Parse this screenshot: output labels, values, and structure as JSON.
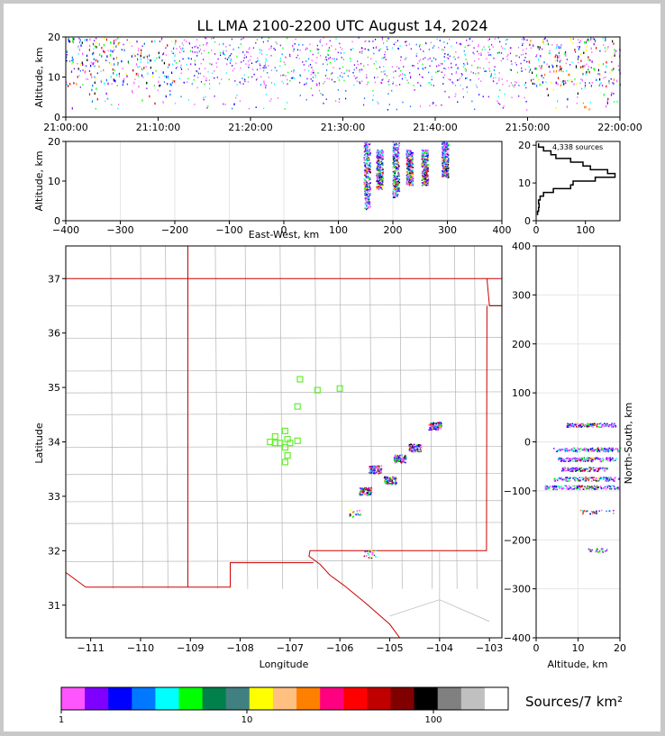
{
  "title": "LL LMA 2100-2200 UTC August 14, 2024",
  "panels": {
    "time_height": {
      "ylabel": "Altitude, km",
      "ytick_labels": [
        "0",
        "10",
        "20"
      ],
      "xtick_labels": [
        "21:00:00",
        "21:10:00",
        "21:20:00",
        "21:30:00",
        "21:40:00",
        "21:50:00",
        "22:00:00"
      ]
    },
    "ew_height": {
      "ylabel": "Altitude, km",
      "xlabel": "East-West, km",
      "ytick_labels": [
        "0",
        "10",
        "20"
      ],
      "xtick_labels": [
        "−400",
        "−300",
        "−200",
        "−100",
        "0",
        "100",
        "200",
        "300",
        "400"
      ]
    },
    "histogram": {
      "annotation": "4,338 sources",
      "ytick_labels": [
        "0",
        "10",
        "20"
      ],
      "xtick_labels": [
        "0",
        "100"
      ]
    },
    "plan_view": {
      "xlabel": "Longitude",
      "ylabel": "Latitude",
      "xtick_labels": [
        "−111",
        "−110",
        "−109",
        "−108",
        "−107",
        "−106",
        "−105",
        "−104",
        "−103"
      ],
      "ytick_labels": [
        "31",
        "32",
        "33",
        "34",
        "35",
        "36",
        "37"
      ]
    },
    "ns_height": {
      "xlabel": "Altitude, km",
      "ylabel": "North-South, km",
      "ytick_labels": [
        "−400",
        "−300",
        "−200",
        "−100",
        "0",
        "100",
        "200",
        "300",
        "400"
      ],
      "xtick_labels": [
        "0",
        "10",
        "20"
      ]
    }
  },
  "colorbar": {
    "label": "Sources/7 km²",
    "tick_labels": [
      "1",
      "10",
      "100"
    ],
    "colors": [
      "#ff55ff",
      "#8000ff",
      "#0000ff",
      "#0078ff",
      "#00ffff",
      "#00ff00",
      "#00804a",
      "#408080",
      "#ffff00",
      "#ffc080",
      "#ff8000",
      "#ff0080",
      "#ff0000",
      "#c00000",
      "#800000",
      "#000000",
      "#808080",
      "#c0c0c0",
      "#ffffff"
    ]
  },
  "colors": {
    "state_border": "#cc0000",
    "county_border": "#b4b4b4",
    "station": "#66ee33"
  },
  "chart_data": [
    {
      "type": "scatter",
      "name": "time-altitude",
      "x_range": [
        "21:00:00",
        "22:00:00"
      ],
      "ylim": [
        0,
        20
      ],
      "clusters": [
        {
          "t": "21:05",
          "alt": [
            8,
            20
          ]
        },
        {
          "t": "21:10",
          "alt": [
            8,
            20
          ]
        },
        {
          "t": "21:20",
          "alt": [
            9,
            19
          ]
        },
        {
          "t": "21:30",
          "alt": [
            8,
            20
          ]
        },
        {
          "t": "21:40",
          "alt": [
            8,
            18
          ]
        },
        {
          "t": "21:50",
          "alt": [
            8,
            20
          ]
        },
        {
          "t": "21:57",
          "alt": [
            7,
            19
          ]
        }
      ]
    },
    {
      "type": "scatter",
      "name": "east-west vs altitude",
      "xlim": [
        -400,
        400
      ],
      "ylim": [
        0,
        20
      ],
      "columns": [
        {
          "x": 152,
          "alt": [
            3,
            20
          ]
        },
        {
          "x": 175,
          "alt": [
            8,
            18
          ]
        },
        {
          "x": 205,
          "alt": [
            6,
            20
          ]
        },
        {
          "x": 230,
          "alt": [
            9,
            18
          ]
        },
        {
          "x": 258,
          "alt": [
            9,
            18
          ]
        },
        {
          "x": 295,
          "alt": [
            11,
            20
          ]
        }
      ]
    },
    {
      "type": "line",
      "name": "altitude histogram",
      "xlim": [
        0,
        170
      ],
      "ylim": [
        0,
        21
      ],
      "alt": [
        2,
        3,
        4,
        5,
        6,
        7,
        8,
        9,
        10,
        11,
        12,
        13,
        14,
        15,
        16,
        17,
        18,
        19,
        20
      ],
      "count": [
        3,
        5,
        6,
        5,
        8,
        15,
        35,
        70,
        75,
        120,
        160,
        145,
        110,
        95,
        70,
        40,
        30,
        15,
        5
      ]
    },
    {
      "type": "scatter",
      "name": "plan view",
      "xlim": [
        -111.5,
        -102.75
      ],
      "ylim": [
        30.4,
        37.6
      ],
      "source_clusters": [
        {
          "lon": -105.5,
          "lat": 33.1
        },
        {
          "lon": -105.3,
          "lat": 33.5
        },
        {
          "lon": -105.0,
          "lat": 33.3
        },
        {
          "lon": -104.8,
          "lat": 33.7
        },
        {
          "lon": -104.5,
          "lat": 33.9
        },
        {
          "lon": -104.1,
          "lat": 34.3
        },
        {
          "lon": -105.7,
          "lat": 32.7
        },
        {
          "lon": -105.4,
          "lat": 31.95
        }
      ],
      "stations": [
        [
          -106.8,
          35.15
        ],
        [
          -106.45,
          34.95
        ],
        [
          -106.0,
          34.98
        ],
        [
          -106.85,
          34.65
        ],
        [
          -107.1,
          34.2
        ],
        [
          -107.3,
          34.1
        ],
        [
          -107.05,
          34.05
        ],
        [
          -107.4,
          34.0
        ],
        [
          -107.2,
          33.98
        ],
        [
          -107.0,
          33.98
        ],
        [
          -106.85,
          34.02
        ],
        [
          -107.1,
          33.9
        ],
        [
          -107.05,
          33.75
        ],
        [
          -107.1,
          33.63
        ],
        [
          -107.3,
          33.98
        ]
      ]
    },
    {
      "type": "scatter",
      "name": "altitude vs north-south",
      "xlim": [
        0,
        20
      ],
      "ylim": [
        -400,
        400
      ],
      "rows": [
        {
          "ns": 35,
          "alt": [
            7,
            19
          ]
        },
        {
          "ns": -15,
          "alt": [
            4,
            20
          ]
        },
        {
          "ns": -35,
          "alt": [
            5,
            19
          ]
        },
        {
          "ns": -55,
          "alt": [
            6,
            17
          ]
        },
        {
          "ns": -75,
          "alt": [
            4,
            20
          ]
        },
        {
          "ns": -92,
          "alt": [
            2,
            20
          ]
        },
        {
          "ns": -142,
          "alt": [
            10,
            19
          ]
        },
        {
          "ns": -220,
          "alt": [
            12,
            17
          ]
        }
      ]
    }
  ]
}
